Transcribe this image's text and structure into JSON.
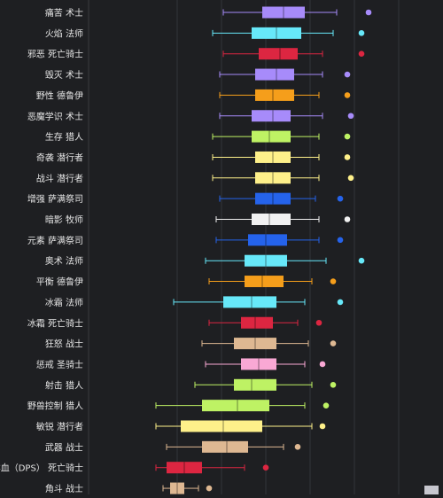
{
  "chart_data": {
    "type": "boxplot",
    "title": "",
    "xlabel": "",
    "ylabel": "",
    "xlim": [
      0,
      100
    ],
    "grid": true,
    "legend": "none",
    "background": "#1e1f22",
    "rows": [
      {
        "label": "痛苦 术士",
        "color": "#a78bfa",
        "min": 38,
        "q1": 49,
        "median": 55,
        "q3": 61,
        "max": 70,
        "outlier": 79
      },
      {
        "label": "火焰 法师",
        "color": "#67e8f9",
        "min": 35,
        "q1": 46,
        "median": 53,
        "q3": 60,
        "max": 69,
        "outlier": 77
      },
      {
        "label": "邪恶 死亡骑士",
        "color": "#dc2641",
        "min": 38,
        "q1": 48,
        "median": 54,
        "q3": 59,
        "max": 66,
        "outlier": 77
      },
      {
        "label": "毁灭 术士",
        "color": "#a78bfa",
        "min": 37,
        "q1": 47,
        "median": 53,
        "q3": 58,
        "max": 66,
        "outlier": 73
      },
      {
        "label": "野性 德鲁伊",
        "color": "#f59e1b",
        "min": 37,
        "q1": 47,
        "median": 52,
        "q3": 58,
        "max": 65,
        "outlier": 73
      },
      {
        "label": "恶魔学识 术士",
        "color": "#a78bfa",
        "min": 37,
        "q1": 46,
        "median": 52,
        "q3": 57,
        "max": 66,
        "outlier": 74
      },
      {
        "label": "生存 猎人",
        "color": "#bef264",
        "min": 35,
        "q1": 46,
        "median": 51,
        "q3": 57,
        "max": 65,
        "outlier": 73
      },
      {
        "label": "奇袭 潜行者",
        "color": "#fef08a",
        "min": 35,
        "q1": 47,
        "median": 52,
        "q3": 57,
        "max": 65,
        "outlier": 73
      },
      {
        "label": "战斗 潜行者",
        "color": "#fef08a",
        "min": 35,
        "q1": 47,
        "median": 52,
        "q3": 57,
        "max": 65,
        "outlier": 74
      },
      {
        "label": "增强 萨满祭司",
        "color": "#2563eb",
        "min": 37,
        "q1": 47,
        "median": 52,
        "q3": 57,
        "max": 64,
        "outlier": 71
      },
      {
        "label": "暗影 牧师",
        "color": "#f1f1f1",
        "min": 36,
        "q1": 46,
        "median": 51,
        "q3": 57,
        "max": 65,
        "outlier": 73
      },
      {
        "label": "元素 萨满祭司",
        "color": "#2563eb",
        "min": 36,
        "q1": 45,
        "median": 50,
        "q3": 56,
        "max": 65,
        "outlier": 71
      },
      {
        "label": "奥术 法师",
        "color": "#67e8f9",
        "min": 33,
        "q1": 44,
        "median": 50,
        "q3": 56,
        "max": 67,
        "outlier": 77
      },
      {
        "label": "平衡 德鲁伊",
        "color": "#f59e1b",
        "min": 34,
        "q1": 44,
        "median": 49,
        "q3": 55,
        "max": 63,
        "outlier": 69
      },
      {
        "label": "冰霜 法师",
        "color": "#67e8f9",
        "min": 24,
        "q1": 38,
        "median": 46,
        "q3": 53,
        "max": 61,
        "outlier": 71
      },
      {
        "label": "冰霜 死亡骑士",
        "color": "#dc2641",
        "min": 34,
        "q1": 43,
        "median": 47,
        "q3": 52,
        "max": 59,
        "outlier": 65
      },
      {
        "label": "狂怒 战士",
        "color": "#deb892",
        "min": 32,
        "q1": 41,
        "median": 47,
        "q3": 53,
        "max": 62,
        "outlier": 69
      },
      {
        "label": "惩戒 圣骑士",
        "color": "#f9a8d4",
        "min": 33,
        "q1": 43,
        "median": 48,
        "q3": 53,
        "max": 61,
        "outlier": 66
      },
      {
        "label": "射击 猎人",
        "color": "#bef264",
        "min": 30,
        "q1": 41,
        "median": 46,
        "q3": 53,
        "max": 63,
        "outlier": 69
      },
      {
        "label": "野兽控制 猎人",
        "color": "#bef264",
        "min": 19,
        "q1": 32,
        "median": 42,
        "q3": 51,
        "max": 61,
        "outlier": 67
      },
      {
        "label": "敏锐 潜行者",
        "color": "#fef08a",
        "min": 19,
        "q1": 26,
        "median": 38,
        "q3": 49,
        "max": 63,
        "outlier": 66
      },
      {
        "label": "武器 战士",
        "color": "#deb892",
        "min": 22,
        "q1": 32,
        "median": 39,
        "q3": 45,
        "max": 55,
        "outlier": 59
      },
      {
        "label": "鲜血（DPS） 死亡骑士",
        "color": "#dc2641",
        "min": 19,
        "q1": 22,
        "median": 27,
        "q3": 32,
        "max": 44,
        "outlier": 50
      },
      {
        "label": "角斗 战士",
        "color": "#deb892",
        "min": 21,
        "q1": 23,
        "median": 25,
        "q3": 27,
        "max": 31,
        "outlier": 34
      }
    ]
  }
}
